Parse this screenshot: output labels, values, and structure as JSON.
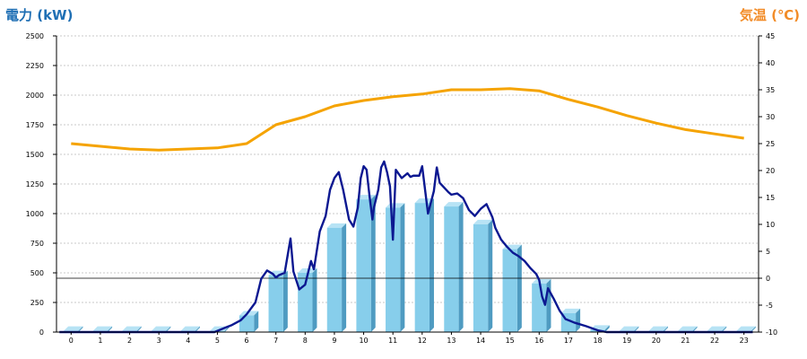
{
  "chart_data": {
    "type": "bar",
    "left_axis_label": "電力 (kW)",
    "right_axis_label": "気温 (℃)",
    "left_ylim": [
      0,
      2500
    ],
    "left_ticks": [
      0,
      250,
      500,
      750,
      1000,
      1250,
      1500,
      1750,
      2000,
      2250,
      2500
    ],
    "right_ylim": [
      -10,
      45
    ],
    "right_ticks": [
      -10,
      -5,
      0,
      5,
      10,
      15,
      20,
      25,
      30,
      35,
      40,
      45
    ],
    "categories": [
      "0",
      "1",
      "2",
      "3",
      "4",
      "5",
      "6",
      "7",
      "8",
      "9",
      "10",
      "11",
      "12",
      "13",
      "14",
      "15",
      "16",
      "17",
      "18",
      "19",
      "20",
      "21",
      "22",
      "23"
    ],
    "grid": true,
    "series": [
      {
        "type": "bar",
        "axis": "left",
        "values": [
          10,
          10,
          10,
          10,
          10,
          10,
          140,
          480,
          500,
          880,
          1120,
          1050,
          1090,
          1060,
          910,
          700,
          410,
          160,
          20,
          10,
          10,
          10,
          10,
          10
        ]
      },
      {
        "type": "line",
        "axis": "right",
        "x": [
          0,
          1,
          2,
          3,
          4,
          5,
          6,
          7,
          8,
          9,
          10,
          11,
          12,
          13,
          14,
          15,
          16,
          17,
          18,
          19,
          20,
          21,
          22,
          23
        ],
        "values": [
          25,
          24.5,
          24,
          23.8,
          24,
          24.2,
          25,
          28.5,
          30,
          32,
          33,
          33.7,
          34.2,
          35,
          35,
          35.2,
          34.8,
          33.2,
          31.8,
          30.2,
          28.8,
          27.6,
          26.8,
          26
        ]
      },
      {
        "type": "line",
        "axis": "left",
        "x": [
          -0.4,
          0,
          1,
          2,
          3,
          4,
          4.9,
          5.2,
          5.5,
          5.8,
          6.0,
          6.3,
          6.5,
          6.7,
          6.9,
          7.0,
          7.1,
          7.3,
          7.5,
          7.6,
          7.8,
          8.0,
          8.2,
          8.3,
          8.5,
          8.7,
          8.85,
          9.0,
          9.15,
          9.3,
          9.5,
          9.65,
          9.8,
          9.9,
          10.0,
          10.1,
          10.2,
          10.3,
          10.35,
          10.5,
          10.6,
          10.7,
          10.8,
          10.9,
          11.0,
          11.1,
          11.3,
          11.5,
          11.6,
          11.7,
          11.9,
          12.0,
          12.1,
          12.2,
          12.4,
          12.5,
          12.6,
          12.9,
          13.0,
          13.2,
          13.4,
          13.6,
          13.8,
          14.0,
          14.2,
          14.4,
          14.5,
          14.7,
          14.9,
          15.1,
          15.3,
          15.5,
          15.7,
          15.9,
          16.0,
          16.1,
          16.2,
          16.3,
          16.5,
          16.7,
          16.9,
          17.2,
          17.6,
          18.0,
          18.3,
          18.7,
          19,
          20,
          21,
          22,
          23,
          23.3
        ],
        "values": [
          0,
          0,
          0,
          0,
          0,
          0,
          0,
          30,
          60,
          100,
          150,
          250,
          450,
          520,
          490,
          460,
          480,
          500,
          790,
          510,
          360,
          400,
          600,
          530,
          850,
          980,
          1200,
          1300,
          1350,
          1200,
          950,
          890,
          1050,
          1300,
          1400,
          1370,
          1150,
          950,
          1050,
          1200,
          1390,
          1440,
          1350,
          1230,
          780,
          1370,
          1300,
          1340,
          1310,
          1320,
          1320,
          1400,
          1200,
          1000,
          1190,
          1390,
          1260,
          1180,
          1160,
          1170,
          1130,
          1030,
          980,
          1040,
          1080,
          970,
          880,
          780,
          720,
          670,
          640,
          600,
          540,
          490,
          440,
          300,
          230,
          370,
          280,
          180,
          110,
          80,
          50,
          15,
          0,
          0,
          0,
          0,
          0,
          0,
          0,
          0
        ]
      }
    ]
  },
  "colors": {
    "left_title": "#1f6fb4",
    "right_title": "#f28c28",
    "bar_front": "#87ceeb",
    "bar_top": "#b7e3f5",
    "bar_side": "#4f9bc1",
    "temp_line": "#f5a300",
    "power_line": "#0c1891"
  }
}
